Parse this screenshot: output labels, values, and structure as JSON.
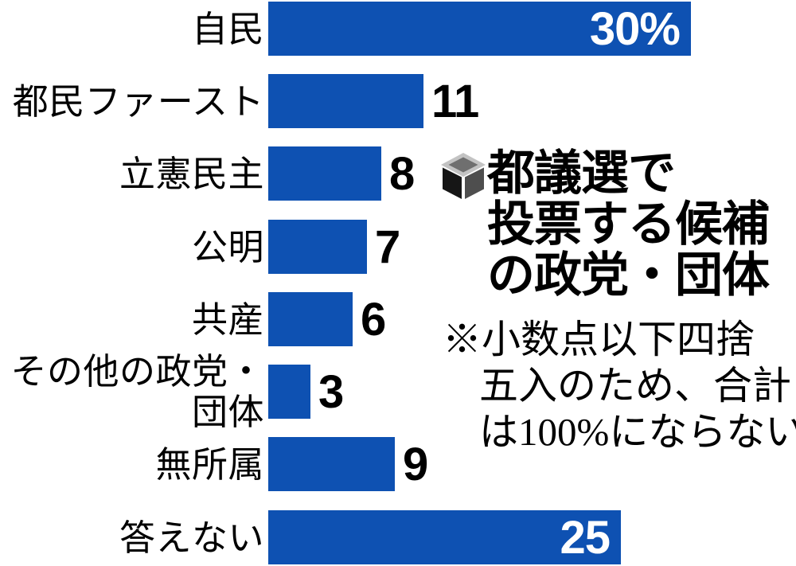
{
  "chart_data": {
    "type": "bar",
    "orientation": "horizontal",
    "title": "都議選で投票する候補の政党・団体",
    "title_lines": [
      "都議選で",
      "投票する候補",
      "の政党・団体"
    ],
    "categories": [
      "自民",
      "都民ファースト",
      "立憲民主",
      "公明",
      "共産",
      "その他の政党・団体",
      "無所属",
      "答えない"
    ],
    "values": [
      30,
      11,
      8,
      7,
      6,
      3,
      9,
      25
    ],
    "values_display": [
      "30%",
      "11",
      "8",
      "7",
      "6",
      "3",
      "9",
      "25"
    ],
    "unit": "%",
    "xlim": [
      0,
      30
    ],
    "grid": false,
    "legend": "none",
    "note": "※小数点以下四捨五入のため、合計は100%にならない",
    "note_lines": [
      "※小数点以下四捨",
      "五入のため、合計",
      "は100%にならない"
    ]
  },
  "icons": [
    {
      "name": "ballot-box-icon",
      "meaning": "投票箱 (ballot box marking the headline)"
    }
  ],
  "colors": {
    "bar": "#0e51b2",
    "bar_value_text": "#ffffff",
    "text": "#000000",
    "background": "#ffffff",
    "icon_top": "#c3c3c3",
    "icon_slot": "#6f6f6f",
    "icon_left": "#161616",
    "icon_right": "#4e4e4e"
  }
}
